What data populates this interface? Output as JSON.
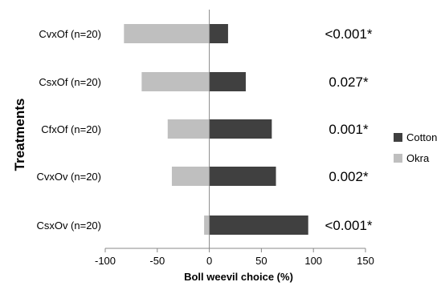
{
  "chart_data": {
    "type": "bar",
    "orientation": "horizontal",
    "xlabel": "Boll weevil choice (%)",
    "ylabel": "Treatments",
    "xlim": [
      -100,
      150
    ],
    "xticks": [
      -100,
      -50,
      0,
      50,
      100,
      150
    ],
    "categories": [
      "CvxOf (n=20)",
      "CsxOf (n=20)",
      "CfxOf (n=20)",
      "CvxOv (n=20)",
      "CsxOv (n=20)"
    ],
    "series": [
      {
        "name": "Cotton",
        "color": "#404040",
        "values": [
          18,
          35,
          60,
          64,
          95
        ]
      },
      {
        "name": "Okra",
        "color": "#bfbfbf",
        "values": [
          -82,
          -65,
          -40,
          -36,
          -5
        ]
      }
    ],
    "annotations": [
      "<0.001*",
      "0.027*",
      "0.001*",
      "0.002*",
      "<0.001*"
    ],
    "legend_position": "right",
    "grid": false
  }
}
